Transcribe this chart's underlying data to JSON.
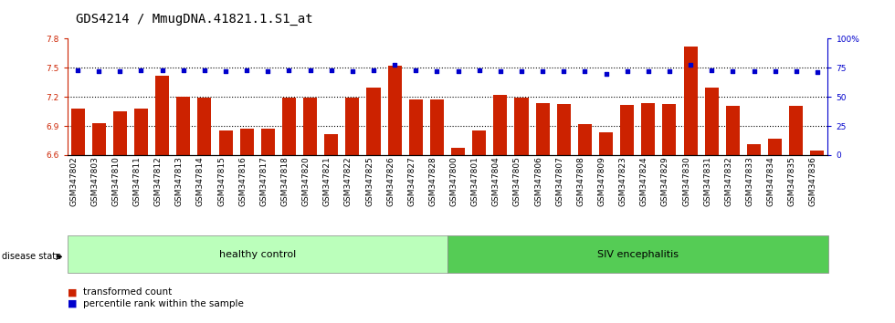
{
  "title": "GDS4214 / MmugDNA.41821.1.S1_at",
  "samples": [
    "GSM347802",
    "GSM347803",
    "GSM347810",
    "GSM347811",
    "GSM347812",
    "GSM347813",
    "GSM347814",
    "GSM347815",
    "GSM347816",
    "GSM347817",
    "GSM347818",
    "GSM347820",
    "GSM347821",
    "GSM347822",
    "GSM347825",
    "GSM347826",
    "GSM347827",
    "GSM347828",
    "GSM347800",
    "GSM347801",
    "GSM347804",
    "GSM347805",
    "GSM347806",
    "GSM347807",
    "GSM347808",
    "GSM347809",
    "GSM347823",
    "GSM347824",
    "GSM347829",
    "GSM347830",
    "GSM347831",
    "GSM347832",
    "GSM347833",
    "GSM347834",
    "GSM347835",
    "GSM347836"
  ],
  "bar_values": [
    7.08,
    6.93,
    7.05,
    7.08,
    7.42,
    7.2,
    7.19,
    6.85,
    6.87,
    6.87,
    7.19,
    7.19,
    6.82,
    7.19,
    7.3,
    7.52,
    7.17,
    7.17,
    6.67,
    6.85,
    7.22,
    7.19,
    7.14,
    7.13,
    6.92,
    6.83,
    7.12,
    7.14,
    7.13,
    7.72,
    7.3,
    7.11,
    6.71,
    6.77,
    7.11,
    6.65
  ],
  "percentile_values": [
    73,
    72,
    72,
    73,
    73,
    73,
    73,
    72,
    73,
    72,
    73,
    73,
    73,
    72,
    73,
    78,
    73,
    72,
    72,
    73,
    72,
    72,
    72,
    72,
    72,
    70,
    72,
    72,
    72,
    78,
    73,
    72,
    72,
    72,
    72,
    71
  ],
  "healthy_control_count": 18,
  "siv_encephalitis_count": 18,
  "ylim_left": [
    6.6,
    7.8
  ],
  "ylim_right": [
    0,
    100
  ],
  "yticks_left": [
    6.6,
    6.9,
    7.2,
    7.5,
    7.8
  ],
  "ytick_labels_left": [
    "6.6",
    "6.9",
    "7.2",
    "7.5",
    "7.8"
  ],
  "yticks_right": [
    0,
    25,
    50,
    75,
    100
  ],
  "ytick_labels_right": [
    "0",
    "25",
    "50",
    "75",
    "100%"
  ],
  "bar_color": "#cc2200",
  "percentile_color": "#0000cc",
  "healthy_control_color": "#bbffbb",
  "siv_encephalitis_color": "#55cc55",
  "background_color": "#ffffff",
  "tick_label_fontsize": 6.5,
  "title_fontsize": 10,
  "grid_dotted_vals": [
    6.9,
    7.2,
    7.5
  ]
}
